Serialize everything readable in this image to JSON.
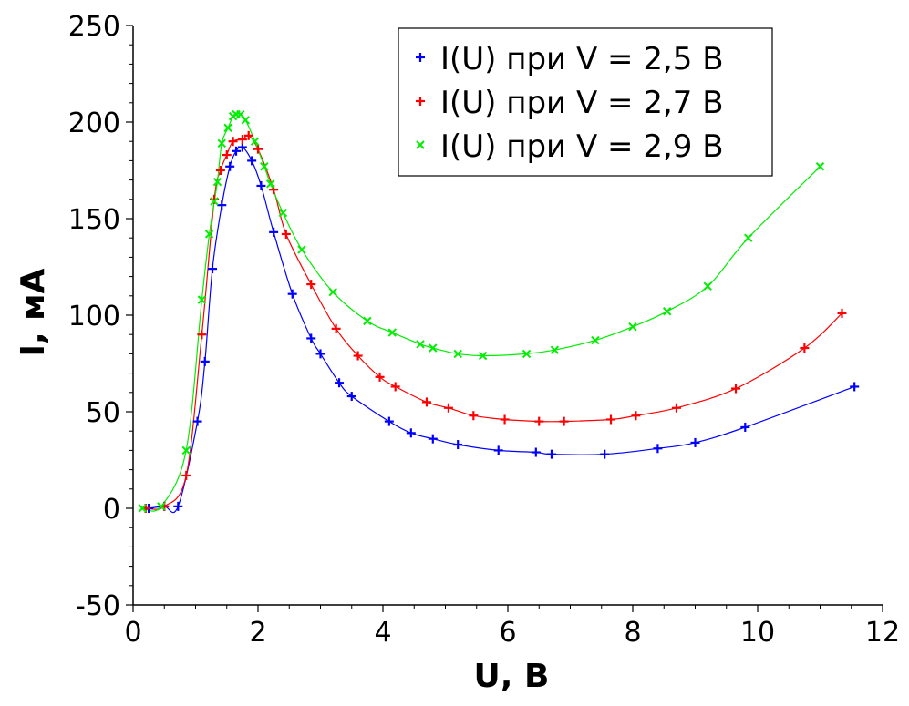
{
  "chart_data": {
    "type": "scatter",
    "title": "",
    "xlabel": "U, В",
    "ylabel": "I, мА",
    "xlim": [
      0,
      12
    ],
    "ylim": [
      -50,
      250
    ],
    "xticks": [
      0,
      2,
      4,
      6,
      8,
      10,
      12
    ],
    "yticks": [
      -50,
      0,
      50,
      100,
      150,
      200,
      250
    ],
    "xtick_labels": [
      "0",
      "2",
      "4",
      "6",
      "8",
      "10",
      "12"
    ],
    "ytick_labels": [
      "-50",
      "0",
      "50",
      "100",
      "150",
      "200",
      "250"
    ],
    "grid": false,
    "legend_position": "top-right",
    "series": [
      {
        "name": "I(U) при V = 2,5 В",
        "color": "#0000ff",
        "marker": "plus",
        "x": [
          0.2,
          0.25,
          0.5,
          0.72,
          1.03,
          1.15,
          1.27,
          1.42,
          1.55,
          1.65,
          1.75,
          1.9,
          2.05,
          2.25,
          2.55,
          2.85,
          3.0,
          3.3,
          3.5,
          4.1,
          4.45,
          4.8,
          5.2,
          5.85,
          6.45,
          6.7,
          7.55,
          8.4,
          9.0,
          9.8,
          11.55
        ],
        "y": [
          0,
          0,
          1,
          1,
          45,
          76,
          124,
          157,
          177,
          185,
          187,
          180,
          167,
          143,
          111,
          88,
          80,
          65,
          58,
          45,
          39,
          36,
          33,
          30,
          29,
          28,
          28,
          31,
          34,
          42,
          63
        ]
      },
      {
        "name": "I(U) при V = 2,7 В",
        "color": "#ff0000",
        "marker": "plus",
        "x": [
          0.2,
          0.5,
          0.85,
          1.1,
          1.3,
          1.4,
          1.5,
          1.6,
          1.75,
          1.85,
          2.0,
          2.25,
          2.45,
          2.85,
          3.25,
          3.6,
          3.95,
          4.2,
          4.7,
          5.05,
          5.45,
          5.95,
          6.5,
          6.9,
          7.65,
          8.05,
          8.7,
          9.65,
          10.75,
          11.35
        ],
        "y": [
          0,
          1,
          17,
          90,
          160,
          175,
          183,
          190,
          191,
          193,
          186,
          165,
          142,
          116,
          93,
          79,
          68,
          63,
          55,
          52,
          48,
          46,
          45,
          45,
          46,
          48,
          52,
          62,
          83,
          101
        ]
      },
      {
        "name": "I(U) при V = 2,9 В",
        "color": "#00ee00",
        "marker": "cross",
        "x": [
          0.15,
          0.45,
          0.85,
          1.1,
          1.22,
          1.3,
          1.35,
          1.42,
          1.52,
          1.6,
          1.65,
          1.72,
          1.8,
          1.95,
          2.1,
          2.2,
          2.4,
          2.7,
          3.2,
          3.75,
          4.15,
          4.6,
          4.8,
          5.2,
          5.6,
          6.3,
          6.75,
          7.4,
          8.0,
          8.55,
          9.2,
          9.85,
          11.0
        ],
        "y": [
          0,
          1,
          30,
          108,
          142,
          159,
          169,
          189,
          197,
          203,
          204,
          204,
          201,
          190,
          177,
          168,
          153,
          134,
          112,
          97,
          91,
          85,
          83,
          80,
          79,
          80,
          82,
          87,
          94,
          102,
          115,
          140,
          177
        ]
      }
    ]
  }
}
